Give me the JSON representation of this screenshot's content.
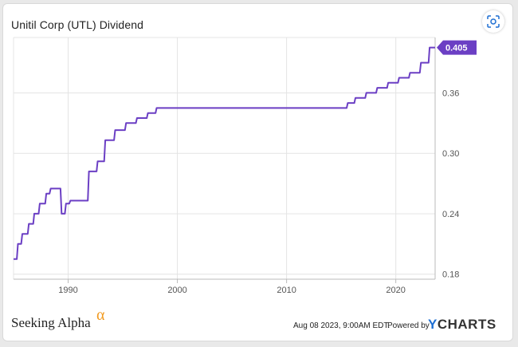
{
  "header": {
    "title": "Unitil Corp (UTL) Dividend",
    "camera_icon": "camera-icon"
  },
  "footer": {
    "logo_text": "Seeking Alpha",
    "logo_symbol": "α",
    "date": "Aug 08 2023, 9:00AM EDT.",
    "powered": "Powered by",
    "brand_y": "Y",
    "brand_rest": "CHARTS"
  },
  "colors": {
    "line": "#6b3fc4",
    "grid": "#e4e4e4",
    "axis": "#bbbbbb",
    "label": "#555555"
  },
  "chart_data": {
    "type": "line",
    "title": "Unitil Corp (UTL) Dividend",
    "xlim": [
      1985.0,
      2023.6
    ],
    "ylim": [
      0.175,
      0.415
    ],
    "x_ticks": [
      1990,
      2000,
      2010,
      2020
    ],
    "x_tick_labels": [
      "1990",
      "2000",
      "2010",
      "2020"
    ],
    "y_ticks": [
      0.18,
      0.24,
      0.3,
      0.36
    ],
    "y_tick_labels": [
      "0.18",
      "0.24",
      "0.30",
      "0.36"
    ],
    "grid": true,
    "last_value_label": "0.405",
    "series": [
      {
        "values_xy": [
          [
            1985.0,
            0.195
          ],
          [
            1985.3,
            0.195
          ],
          [
            1985.4,
            0.21
          ],
          [
            1985.7,
            0.21
          ],
          [
            1985.8,
            0.22
          ],
          [
            1986.3,
            0.22
          ],
          [
            1986.4,
            0.23
          ],
          [
            1986.8,
            0.23
          ],
          [
            1986.9,
            0.24
          ],
          [
            1987.3,
            0.24
          ],
          [
            1987.4,
            0.25
          ],
          [
            1987.9,
            0.25
          ],
          [
            1988.0,
            0.26
          ],
          [
            1988.3,
            0.26
          ],
          [
            1988.4,
            0.265
          ],
          [
            1989.3,
            0.265
          ],
          [
            1989.4,
            0.24
          ],
          [
            1989.7,
            0.24
          ],
          [
            1989.8,
            0.25
          ],
          [
            1990.1,
            0.25
          ],
          [
            1990.2,
            0.253
          ],
          [
            1991.8,
            0.253
          ],
          [
            1991.9,
            0.282
          ],
          [
            1992.6,
            0.282
          ],
          [
            1992.7,
            0.292
          ],
          [
            1993.3,
            0.292
          ],
          [
            1993.4,
            0.313
          ],
          [
            1994.2,
            0.313
          ],
          [
            1994.3,
            0.323
          ],
          [
            1995.2,
            0.323
          ],
          [
            1995.3,
            0.33
          ],
          [
            1996.2,
            0.33
          ],
          [
            1996.3,
            0.335
          ],
          [
            1997.2,
            0.335
          ],
          [
            1997.3,
            0.34
          ],
          [
            1998.0,
            0.34
          ],
          [
            1998.1,
            0.345
          ],
          [
            2015.5,
            0.345
          ],
          [
            2015.6,
            0.35
          ],
          [
            2016.2,
            0.35
          ],
          [
            2016.3,
            0.355
          ],
          [
            2017.2,
            0.355
          ],
          [
            2017.3,
            0.36
          ],
          [
            2018.2,
            0.36
          ],
          [
            2018.3,
            0.365
          ],
          [
            2019.2,
            0.365
          ],
          [
            2019.3,
            0.37
          ],
          [
            2020.2,
            0.37
          ],
          [
            2020.3,
            0.375
          ],
          [
            2021.2,
            0.375
          ],
          [
            2021.3,
            0.38
          ],
          [
            2022.2,
            0.38
          ],
          [
            2022.3,
            0.39
          ],
          [
            2023.0,
            0.39
          ],
          [
            2023.1,
            0.405
          ],
          [
            2023.6,
            0.405
          ]
        ]
      }
    ]
  }
}
